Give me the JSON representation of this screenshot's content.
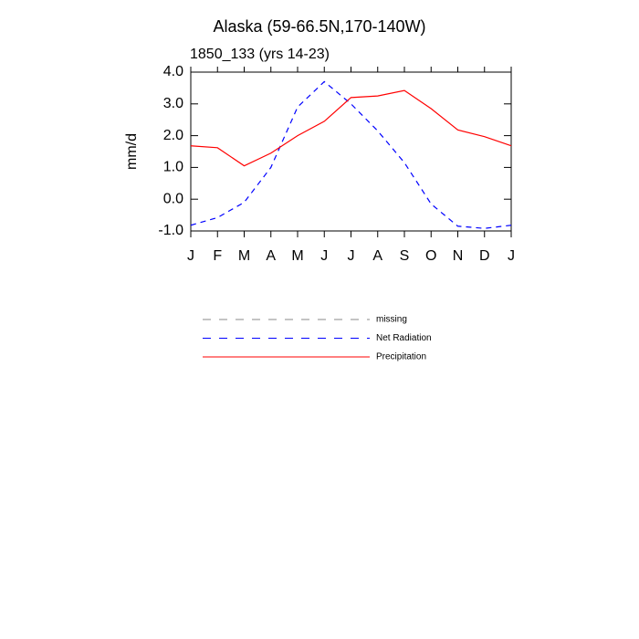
{
  "chart_data": {
    "type": "line",
    "title": "Alaska (59-66.5N,170-140W)",
    "subtitle": "1850_133 (yrs 14-23)",
    "y_label": "mm/d",
    "categories": [
      "J",
      "F",
      "M",
      "A",
      "M",
      "J",
      "J",
      "A",
      "S",
      "O",
      "N",
      "D",
      "J"
    ],
    "ylim": [
      -1,
      4
    ],
    "yticks": [
      {
        "value": -1,
        "label": "-1.0"
      },
      {
        "value": 0,
        "label": "0.0"
      },
      {
        "value": 1,
        "label": "1.0"
      },
      {
        "value": 2,
        "label": "2.0"
      },
      {
        "value": 3,
        "label": "3.0"
      },
      {
        "value": 4,
        "label": "4.0"
      }
    ],
    "series": [
      {
        "name": "missing",
        "color": "#888888",
        "dashed": true,
        "values": [
          null,
          null,
          null,
          null,
          null,
          null,
          null,
          null,
          null,
          null,
          null,
          null,
          null
        ]
      },
      {
        "name": "Net Radiation",
        "color": "#0000ff",
        "dashed": true,
        "values": [
          -0.82,
          -0.58,
          -0.1,
          1.0,
          2.9,
          3.7,
          3.0,
          2.15,
          1.15,
          -0.15,
          -0.85,
          -0.92,
          -0.82
        ]
      },
      {
        "name": "Precipitation",
        "color": "#ff0000",
        "dashed": false,
        "values": [
          1.68,
          1.62,
          1.05,
          1.45,
          2.0,
          2.45,
          3.2,
          3.25,
          3.42,
          2.85,
          2.18,
          1.97,
          1.68
        ]
      }
    ]
  }
}
